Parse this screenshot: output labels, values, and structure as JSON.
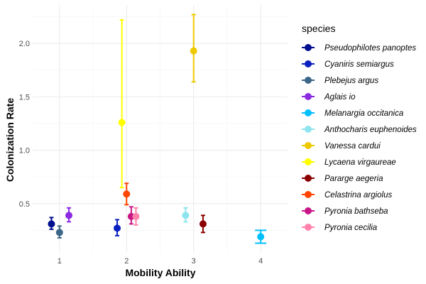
{
  "chart_data": {
    "type": "scatter",
    "xlabel": "Mobility Ability",
    "ylabel": "Colonization Rate",
    "x_ticks": [
      "1",
      "2",
      "3",
      "4"
    ],
    "y_ticks": [
      "0.5",
      "1.0",
      "1.5",
      "2.0"
    ],
    "xlim": [
      0.6,
      4.4
    ],
    "ylim": [
      0.04,
      2.36
    ],
    "grid": true,
    "legend": {
      "title": "species",
      "position": "right"
    },
    "series": [
      {
        "name": "Pseudophilotes panoptes",
        "color": "#000F8F",
        "x": 0.88,
        "mobility": 1,
        "y": 0.31,
        "ymin": 0.26,
        "ymax": 0.37
      },
      {
        "name": "Cyaniris semiargus",
        "color": "#0A1FBF",
        "x": 1.86,
        "mobility": 2,
        "y": 0.27,
        "ymin": 0.2,
        "ymax": 0.35
      },
      {
        "name": "Plebejus argus",
        "color": "#3C6688",
        "x": 1.0,
        "mobility": 1,
        "y": 0.23,
        "ymin": 0.18,
        "ymax": 0.29
      },
      {
        "name": "Aglais io",
        "color": "#8A2BE2",
        "x": 1.14,
        "mobility": 1,
        "y": 0.39,
        "ymin": 0.33,
        "ymax": 0.46
      },
      {
        "name": "Melanargia occitanica",
        "color": "#00BFFF",
        "x": 4.0,
        "mobility": 4,
        "y": 0.19,
        "ymin": 0.13,
        "ymax": 0.25
      },
      {
        "name": "Anthocharis euphenoides",
        "color": "#8EE5EE",
        "x": 2.88,
        "mobility": 3,
        "y": 0.39,
        "ymin": 0.33,
        "ymax": 0.46
      },
      {
        "name": "Vanessa cardui",
        "color": "#EEC900",
        "x": 3.0,
        "mobility": 3,
        "y": 1.93,
        "ymin": 1.64,
        "ymax": 2.27
      },
      {
        "name": "Lycaena virgaureae",
        "color": "#FFFF00",
        "x": 1.93,
        "mobility": 2,
        "y": 1.26,
        "ymin": 0.65,
        "ymax": 2.22
      },
      {
        "name": "Pararge aegeria",
        "color": "#8B0000",
        "x": 3.14,
        "mobility": 3,
        "y": 0.31,
        "ymin": 0.23,
        "ymax": 0.39
      },
      {
        "name": "Celastrina argiolus",
        "color": "#FF4500",
        "x": 2.0,
        "mobility": 2,
        "y": 0.59,
        "ymin": 0.49,
        "ymax": 0.69
      },
      {
        "name": "Pyronia bathseba",
        "color": "#C71585",
        "x": 2.07,
        "mobility": 2,
        "y": 0.38,
        "ymin": 0.31,
        "ymax": 0.47
      },
      {
        "name": "Pyronia cecilia",
        "color": "#FF82AB",
        "x": 2.14,
        "mobility": 2,
        "y": 0.38,
        "ymin": 0.3,
        "ymax": 0.46
      }
    ]
  }
}
